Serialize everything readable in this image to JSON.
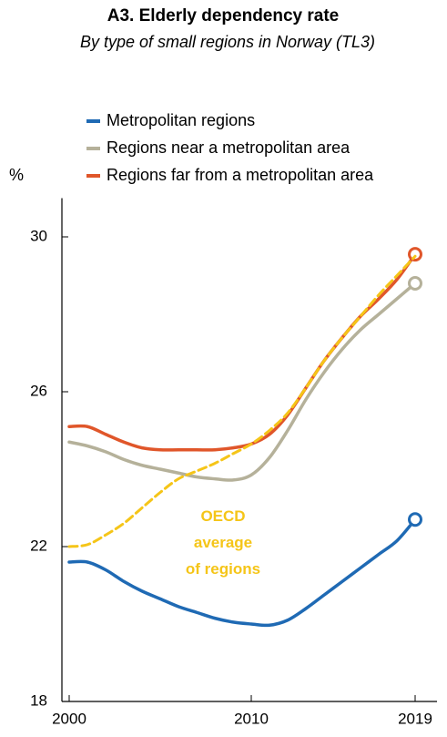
{
  "chart_data": {
    "type": "line",
    "title": "A3. Elderly dependency rate",
    "subtitle": "By  type of small regions in Norway (TL3)",
    "y_label": "%",
    "annotation": "OECD average of regions",
    "x": [
      2000,
      2001,
      2002,
      2003,
      2004,
      2005,
      2006,
      2007,
      2008,
      2009,
      2010,
      2011,
      2012,
      2013,
      2014,
      2015,
      2016,
      2017,
      2018,
      2019
    ],
    "series": [
      {
        "name": "Metropolitan regions",
        "color": "#1f6ab4",
        "end_marker": true,
        "values": [
          21.6,
          21.6,
          21.4,
          21.1,
          20.85,
          20.65,
          20.45,
          20.3,
          20.15,
          20.05,
          20.0,
          19.97,
          20.1,
          20.4,
          20.75,
          21.1,
          21.45,
          21.8,
          22.15,
          22.7
        ]
      },
      {
        "name": "Regions near a metropolitan area",
        "color": "#b5b19a",
        "end_marker": true,
        "values": [
          24.7,
          24.6,
          24.45,
          24.25,
          24.1,
          24.0,
          23.9,
          23.8,
          23.75,
          23.72,
          23.85,
          24.3,
          25.0,
          25.8,
          26.5,
          27.1,
          27.6,
          28.0,
          28.4,
          28.8
        ]
      },
      {
        "name": "Regions far from a metropolitan area",
        "color": "#e0562a",
        "end_marker": true,
        "values": [
          25.1,
          25.1,
          24.9,
          24.7,
          24.55,
          24.5,
          24.5,
          24.5,
          24.5,
          24.55,
          24.65,
          24.9,
          25.4,
          26.1,
          26.8,
          27.4,
          27.95,
          28.4,
          28.9,
          29.55
        ]
      },
      {
        "color": "#f5c518",
        "dashed": true,
        "end_marker": false,
        "values": [
          22.0,
          22.05,
          22.3,
          22.6,
          23.0,
          23.4,
          23.75,
          23.95,
          24.15,
          24.4,
          24.65,
          25.0,
          25.45,
          26.1,
          26.8,
          27.4,
          27.95,
          28.5,
          29.0,
          29.5
        ]
      }
    ],
    "xlim": [
      1999.6,
      2020.2
    ],
    "xticks": [
      2000,
      2010,
      2019
    ],
    "ylim": [
      18,
      31
    ],
    "yticks": [
      18,
      22,
      26,
      30
    ],
    "grid": false
  }
}
